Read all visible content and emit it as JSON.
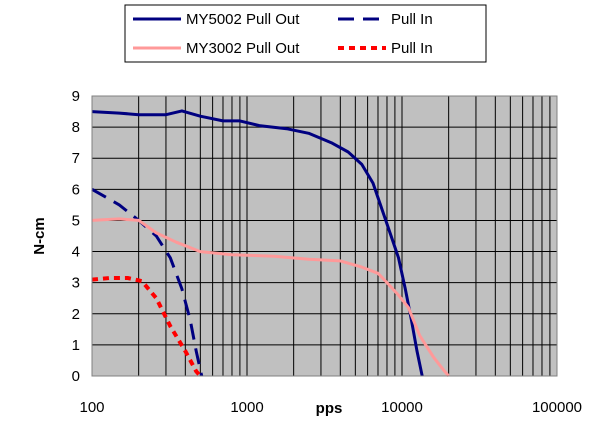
{
  "chart_data": {
    "type": "line",
    "title": "",
    "xlabel": "pps",
    "ylabel": "N-cm",
    "x_scale": "log",
    "xlim": [
      100,
      100000
    ],
    "ylim": [
      0,
      9
    ],
    "x_ticks": [
      "100",
      "1000",
      "10000",
      "100000"
    ],
    "y_ticks": [
      "0",
      "1",
      "2",
      "3",
      "4",
      "5",
      "6",
      "7",
      "8",
      "9"
    ],
    "grid": true,
    "legend_position": "top",
    "series": [
      {
        "name": "MY5002 Pull Out",
        "color": "#000080",
        "dash": "solid",
        "points": [
          [
            100,
            8.5
          ],
          [
            150,
            8.45
          ],
          [
            200,
            8.4
          ],
          [
            300,
            8.4
          ],
          [
            380,
            8.52
          ],
          [
            500,
            8.35
          ],
          [
            700,
            8.2
          ],
          [
            900,
            8.2
          ],
          [
            1200,
            8.05
          ],
          [
            1800,
            7.95
          ],
          [
            2500,
            7.8
          ],
          [
            3500,
            7.5
          ],
          [
            4500,
            7.2
          ],
          [
            5500,
            6.8
          ],
          [
            6500,
            6.2
          ],
          [
            7500,
            5.3
          ],
          [
            8500,
            4.5
          ],
          [
            9500,
            3.8
          ],
          [
            10500,
            2.8
          ],
          [
            11500,
            1.8
          ],
          [
            12500,
            0.8
          ],
          [
            13500,
            0
          ]
        ]
      },
      {
        "name": "Pull In",
        "color": "#000080",
        "dash": "dashed",
        "points": [
          [
            100,
            6.0
          ],
          [
            150,
            5.5
          ],
          [
            200,
            5.0
          ],
          [
            260,
            4.5
          ],
          [
            320,
            3.8
          ],
          [
            380,
            2.8
          ],
          [
            430,
            1.8
          ],
          [
            470,
            0.8
          ],
          [
            510,
            0
          ]
        ]
      },
      {
        "name": "MY3002 Pull Out",
        "color": "#ff9999",
        "dash": "solid",
        "points": [
          [
            100,
            5.0
          ],
          [
            150,
            5.05
          ],
          [
            200,
            5.0
          ],
          [
            260,
            4.6
          ],
          [
            350,
            4.3
          ],
          [
            500,
            4.0
          ],
          [
            800,
            3.9
          ],
          [
            1500,
            3.85
          ],
          [
            2500,
            3.75
          ],
          [
            4000,
            3.7
          ],
          [
            5500,
            3.5
          ],
          [
            7000,
            3.3
          ],
          [
            8000,
            3.0
          ],
          [
            9500,
            2.6
          ],
          [
            11000,
            2.2
          ],
          [
            13000,
            1.3
          ],
          [
            16000,
            0.6
          ],
          [
            18500,
            0.2
          ],
          [
            20000,
            0
          ]
        ]
      },
      {
        "name": "Pull In",
        "color": "#ff0000",
        "dash": "dotted",
        "points": [
          [
            100,
            3.1
          ],
          [
            130,
            3.15
          ],
          [
            170,
            3.15
          ],
          [
            210,
            3.05
          ],
          [
            260,
            2.5
          ],
          [
            320,
            1.6
          ],
          [
            400,
            0.8
          ],
          [
            470,
            0.15
          ],
          [
            500,
            0
          ]
        ]
      }
    ]
  }
}
